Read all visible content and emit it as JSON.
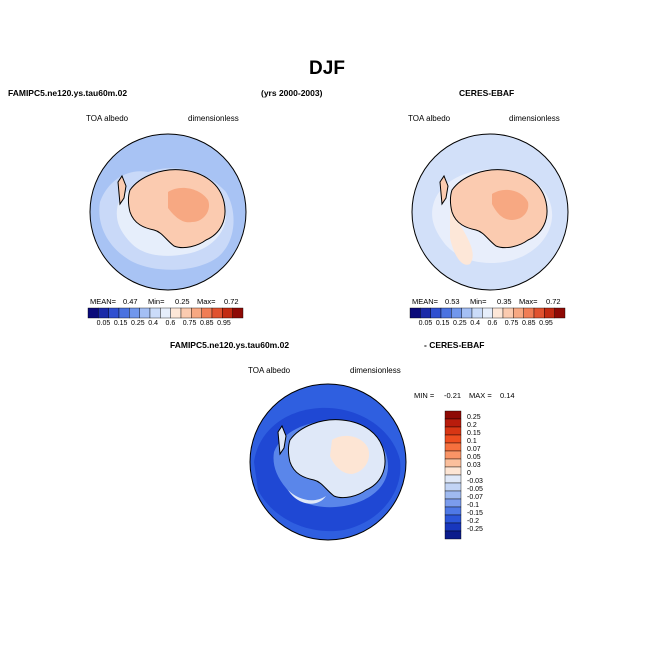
{
  "page": {
    "season": "DJF",
    "model_case": "FAMIPC5.ne120.ys.tau60m.02",
    "years": "(yrs 2000-2003)",
    "obs_case": "CERES-EBAF",
    "diff_model": "FAMIPC5.ne120.ys.tau60m.02",
    "diff_obs": "- CERES-EBAF",
    "variable": "TOA albedo",
    "units": "dimensionless"
  },
  "chart_data": [
    {
      "type": "heatmap",
      "name": "model-panel",
      "title": "FAMIPC5.ne120.ys.tau60m.02",
      "left_label": "TOA albedo",
      "right_label": "dimensionless",
      "stats": {
        "mean_label": "MEAN=",
        "mean": "0.47",
        "min_label": "Min=",
        "min": "0.25",
        "max_label": "Max=",
        "max": "0.72"
      },
      "levels": [
        "0.05",
        "0.15",
        "0.25",
        "0.4",
        "0.6",
        "0.75",
        "0.85",
        "0.95"
      ],
      "colors": [
        "#0a0a7a",
        "#1a2aa8",
        "#2f4fd0",
        "#4a72e0",
        "#7197ec",
        "#a4bff4",
        "#cbdcf9",
        "#e6eefb",
        "#fde7d8",
        "#fbcbb0",
        "#f7a882",
        "#f07d55",
        "#e0522f",
        "#c22b12",
        "#8e0a05"
      ]
    },
    {
      "type": "heatmap",
      "name": "obs-panel",
      "title": "CERES-EBAF",
      "left_label": "TOA albedo",
      "right_label": "dimensionless",
      "stats": {
        "mean_label": "MEAN=",
        "mean": "0.53",
        "min_label": "Min=",
        "min": "0.35",
        "max_label": "Max=",
        "max": "0.72"
      },
      "levels": [
        "0.05",
        "0.15",
        "0.25",
        "0.4",
        "0.6",
        "0.75",
        "0.85",
        "0.95"
      ],
      "colors": [
        "#0a0a7a",
        "#1a2aa8",
        "#2f4fd0",
        "#4a72e0",
        "#7197ec",
        "#a4bff4",
        "#cbdcf9",
        "#e6eefb",
        "#fde7d8",
        "#fbcbb0",
        "#f7a882",
        "#f07d55",
        "#e0522f",
        "#c22b12",
        "#8e0a05"
      ]
    },
    {
      "type": "heatmap",
      "name": "difference-panel",
      "title": "FAMIPC5.ne120.ys.tau60m.02 - CERES-EBAF",
      "left_label": "TOA albedo",
      "right_label": "dimensionless",
      "stats": {
        "min_label": "MIN =",
        "min": "-0.21",
        "max_label": "MAX =",
        "max": "0.14"
      },
      "levels": [
        "0.25",
        "0.2",
        "0.15",
        "0.1",
        "0.07",
        "0.05",
        "0.03",
        "0",
        "-0.03",
        "-0.05",
        "-0.07",
        "-0.1",
        "-0.15",
        "-0.2",
        "-0.25"
      ],
      "colors": [
        "#8e0a05",
        "#b81c0c",
        "#d83614",
        "#ee4e20",
        "#f6703e",
        "#f99466",
        "#fbbf9c",
        "#fde5d4",
        "#dfe8f8",
        "#c2d4f5",
        "#9fbaf0",
        "#7b9ced",
        "#4f79e6",
        "#2c56d9",
        "#1837bd",
        "#0b1c8c"
      ]
    }
  ]
}
